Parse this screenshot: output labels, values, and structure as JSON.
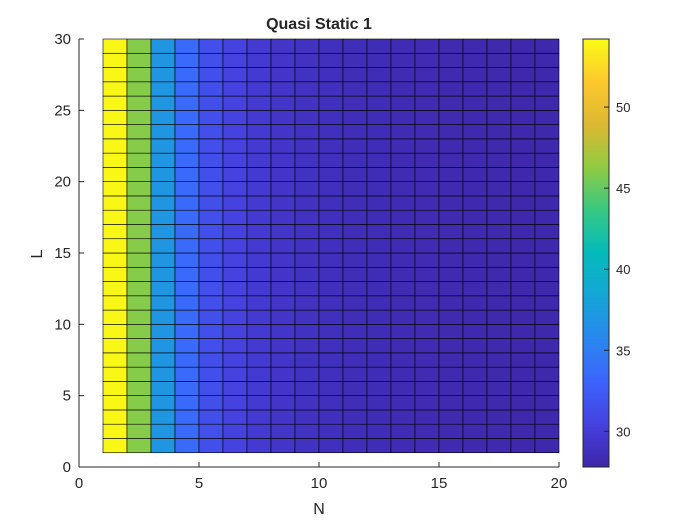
{
  "chart_data": {
    "type": "heatmap",
    "title": "Quasi Static 1",
    "xlabel": "N",
    "ylabel": "L",
    "xlim": [
      0,
      20
    ],
    "ylim": [
      0,
      30
    ],
    "x_ticks": [
      0,
      5,
      10,
      15,
      20
    ],
    "y_ticks": [
      0,
      5,
      10,
      15,
      20,
      25,
      30
    ],
    "x_edges": [
      1,
      20
    ],
    "y_edges": [
      1,
      30
    ],
    "column_values": [
      54,
      46,
      37,
      33.5,
      31.5,
      30.5,
      29.8,
      29.3,
      29.0,
      28.8,
      28.6,
      28.5,
      28.4,
      28.3,
      28.2,
      28.1,
      28.05,
      28.0,
      27.95
    ],
    "color_range": [
      27.8,
      54.2
    ],
    "colorbar_ticks": [
      30,
      35,
      40,
      45,
      50
    ],
    "colormap": "parula",
    "grid_lines": true
  }
}
